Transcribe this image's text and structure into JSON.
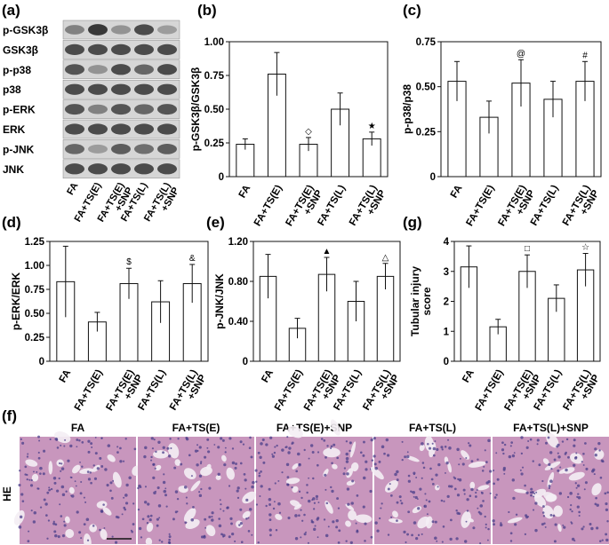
{
  "panel_labels": {
    "a": "(a)",
    "b": "(b)",
    "c": "(c)",
    "d": "(d)",
    "e": "(e)",
    "g": "(g)",
    "f": "(f)"
  },
  "groups": [
    "FA",
    "FA+TS(E)",
    "FA+TS(E)\n+SNP",
    "FA+TS(L)",
    "FA+TS(L)\n+SNP"
  ],
  "blot": {
    "rows": [
      "p-GSK3β",
      "GSK3β",
      "p-p38",
      "p38",
      "p-ERK",
      "ERK",
      "p-JNK",
      "JNK"
    ],
    "intensity": [
      [
        0.55,
        0.95,
        0.45,
        0.85,
        0.4
      ],
      [
        0.85,
        0.85,
        0.85,
        0.85,
        0.85
      ],
      [
        0.8,
        0.45,
        0.85,
        0.7,
        0.85
      ],
      [
        0.85,
        0.85,
        0.85,
        0.85,
        0.85
      ],
      [
        0.8,
        0.55,
        0.8,
        0.7,
        0.8
      ],
      [
        0.85,
        0.85,
        0.85,
        0.85,
        0.85
      ],
      [
        0.7,
        0.4,
        0.75,
        0.65,
        0.75
      ],
      [
        0.85,
        0.85,
        0.85,
        0.85,
        0.85
      ]
    ]
  },
  "chart_data": [
    {
      "id": "b",
      "type": "bar",
      "ylabel": "p-GSK3β/GSK3β",
      "ylim": [
        0,
        1.0
      ],
      "ticks": [
        0,
        0.25,
        0.5,
        0.75,
        1.0
      ],
      "tick_labels": [
        "0",
        "0.25",
        "0.50",
        "0.75",
        "1.00"
      ],
      "values": [
        0.24,
        0.76,
        0.24,
        0.5,
        0.28
      ],
      "errors": [
        0.04,
        0.16,
        0.05,
        0.12,
        0.05
      ],
      "markers": [
        "",
        "",
        "◇",
        "",
        "★"
      ]
    },
    {
      "id": "c",
      "type": "bar",
      "ylabel": "p-p38/p38",
      "ylim": [
        0,
        0.75
      ],
      "ticks": [
        0,
        0.25,
        0.5,
        0.75
      ],
      "tick_labels": [
        "0",
        "0.25",
        "0.50",
        "0.75"
      ],
      "values": [
        0.53,
        0.33,
        0.52,
        0.43,
        0.53
      ],
      "errors": [
        0.11,
        0.09,
        0.13,
        0.1,
        0.11
      ],
      "markers": [
        "",
        "",
        "@",
        "",
        "#"
      ]
    },
    {
      "id": "d",
      "type": "bar",
      "ylabel": "p-ERK/ERK",
      "ylim": [
        0,
        1.25
      ],
      "ticks": [
        0,
        0.25,
        0.5,
        0.75,
        1.0,
        1.25
      ],
      "tick_labels": [
        "0",
        "0.25",
        "0.50",
        "0.75",
        "1.00",
        "1.25"
      ],
      "values": [
        0.83,
        0.41,
        0.81,
        0.62,
        0.81
      ],
      "errors": [
        0.37,
        0.1,
        0.16,
        0.22,
        0.2
      ],
      "markers": [
        "",
        "",
        "$",
        "",
        "&"
      ]
    },
    {
      "id": "e",
      "type": "bar",
      "ylabel": "p-JNK/JNK",
      "ylim": [
        0,
        1.2
      ],
      "ticks": [
        0,
        0.4,
        0.8,
        1.2
      ],
      "tick_labels": [
        "0",
        "0.40",
        "0.80",
        "1.20"
      ],
      "values": [
        0.85,
        0.33,
        0.87,
        0.6,
        0.85
      ],
      "errors": [
        0.22,
        0.1,
        0.17,
        0.2,
        0.13
      ],
      "markers": [
        "",
        "",
        "▲",
        "",
        "△"
      ]
    },
    {
      "id": "g",
      "type": "bar",
      "ylabel": "Tubular injury score",
      "ylim": [
        0,
        4
      ],
      "ticks": [
        0,
        1,
        2,
        3,
        4
      ],
      "tick_labels": [
        "0",
        "1",
        "2",
        "3",
        "4"
      ],
      "values": [
        3.15,
        1.15,
        3.0,
        2.1,
        3.05
      ],
      "errors": [
        0.7,
        0.25,
        0.55,
        0.45,
        0.55
      ],
      "markers": [
        "",
        "",
        "□",
        "",
        "☆"
      ]
    }
  ],
  "histology": {
    "row_label": "HE",
    "titles": [
      "FA",
      "FA+TS(E)",
      "FA+TS(E)+SNP",
      "FA+TS(L)",
      "FA+TS(L)+SNP"
    ]
  },
  "colors": {
    "bar_fill": "#ffffff",
    "stroke": "#111111",
    "tissue_bg": "#c896bd",
    "nuclei": "#4a3d8a"
  }
}
